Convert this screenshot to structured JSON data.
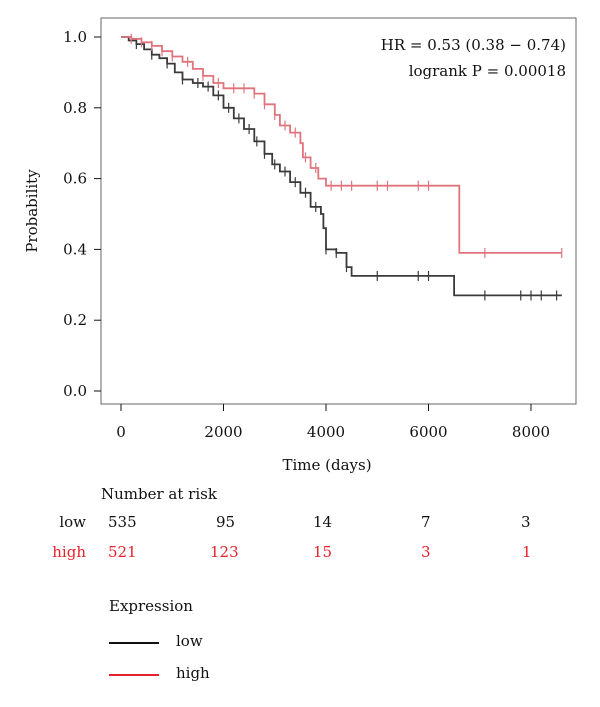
{
  "colors": {
    "low": "#111111",
    "high": "#e8202a",
    "high_curve": "#e0747c",
    "low_curve": "#3a3a3a"
  },
  "chart_data": {
    "type": "line",
    "xlabel": "Time (days)",
    "ylabel": "Probability",
    "xlim": [
      0,
      8600
    ],
    "ylim": [
      0,
      1.0
    ],
    "x_ticks": [
      0,
      2000,
      4000,
      6000,
      8000
    ],
    "y_ticks": [
      "0.0",
      "0.2",
      "0.4",
      "0.6",
      "0.8",
      "1.0"
    ],
    "grid": false,
    "annotations": [
      "HR = 0.53 (0.38 − 0.74)",
      "logrank P = 0.00018"
    ],
    "series": [
      {
        "name": "low",
        "points": [
          [
            0,
            1.0
          ],
          [
            150,
            0.99
          ],
          [
            300,
            0.98
          ],
          [
            450,
            0.965
          ],
          [
            600,
            0.95
          ],
          [
            750,
            0.94
          ],
          [
            900,
            0.925
          ],
          [
            1050,
            0.9
          ],
          [
            1200,
            0.88
          ],
          [
            1400,
            0.87
          ],
          [
            1600,
            0.86
          ],
          [
            1800,
            0.835
          ],
          [
            2000,
            0.8
          ],
          [
            2200,
            0.77
          ],
          [
            2400,
            0.74
          ],
          [
            2600,
            0.705
          ],
          [
            2800,
            0.67
          ],
          [
            2950,
            0.64
          ],
          [
            3100,
            0.62
          ],
          [
            3300,
            0.59
          ],
          [
            3500,
            0.56
          ],
          [
            3700,
            0.52
          ],
          [
            3900,
            0.5
          ],
          [
            3950,
            0.46
          ],
          [
            4000,
            0.4
          ],
          [
            4200,
            0.39
          ],
          [
            4400,
            0.35
          ],
          [
            4500,
            0.325
          ],
          [
            6450,
            0.325
          ],
          [
            6500,
            0.27
          ],
          [
            8600,
            0.27
          ]
        ],
        "censor_x": [
          300,
          600,
          900,
          1200,
          1500,
          1700,
          1900,
          2100,
          2300,
          2500,
          2650,
          2800,
          3000,
          3200,
          3400,
          3600,
          3800,
          4000,
          4200,
          4400,
          5000,
          5800,
          6000,
          7100,
          7800,
          8000,
          8200,
          8500
        ]
      },
      {
        "name": "high",
        "points": [
          [
            0,
            1.0
          ],
          [
            200,
            0.995
          ],
          [
            400,
            0.985
          ],
          [
            600,
            0.975
          ],
          [
            800,
            0.96
          ],
          [
            1000,
            0.945
          ],
          [
            1200,
            0.93
          ],
          [
            1400,
            0.91
          ],
          [
            1600,
            0.89
          ],
          [
            1800,
            0.87
          ],
          [
            2000,
            0.855
          ],
          [
            2400,
            0.855
          ],
          [
            2600,
            0.84
          ],
          [
            2800,
            0.81
          ],
          [
            3000,
            0.78
          ],
          [
            3100,
            0.75
          ],
          [
            3300,
            0.73
          ],
          [
            3500,
            0.7
          ],
          [
            3550,
            0.66
          ],
          [
            3700,
            0.63
          ],
          [
            3850,
            0.6
          ],
          [
            4000,
            0.58
          ],
          [
            6550,
            0.58
          ],
          [
            6600,
            0.39
          ],
          [
            8600,
            0.39
          ]
        ],
        "censor_x": [
          200,
          400,
          600,
          800,
          1000,
          1300,
          1600,
          1900,
          2200,
          2400,
          2600,
          2800,
          3000,
          3200,
          3400,
          3600,
          3800,
          4100,
          4300,
          4500,
          5000,
          5200,
          5800,
          6000,
          7100,
          8600
        ]
      }
    ]
  },
  "risk_table": {
    "title": "Number at risk",
    "rows": [
      {
        "label": "low",
        "values": [
          "535",
          "95",
          "14",
          "7",
          "3"
        ]
      },
      {
        "label": "high",
        "values": [
          "521",
          "123",
          "15",
          "3",
          "1"
        ]
      }
    ]
  },
  "legend": {
    "title": "Expression",
    "items": [
      {
        "label": "low"
      },
      {
        "label": "high"
      }
    ]
  }
}
